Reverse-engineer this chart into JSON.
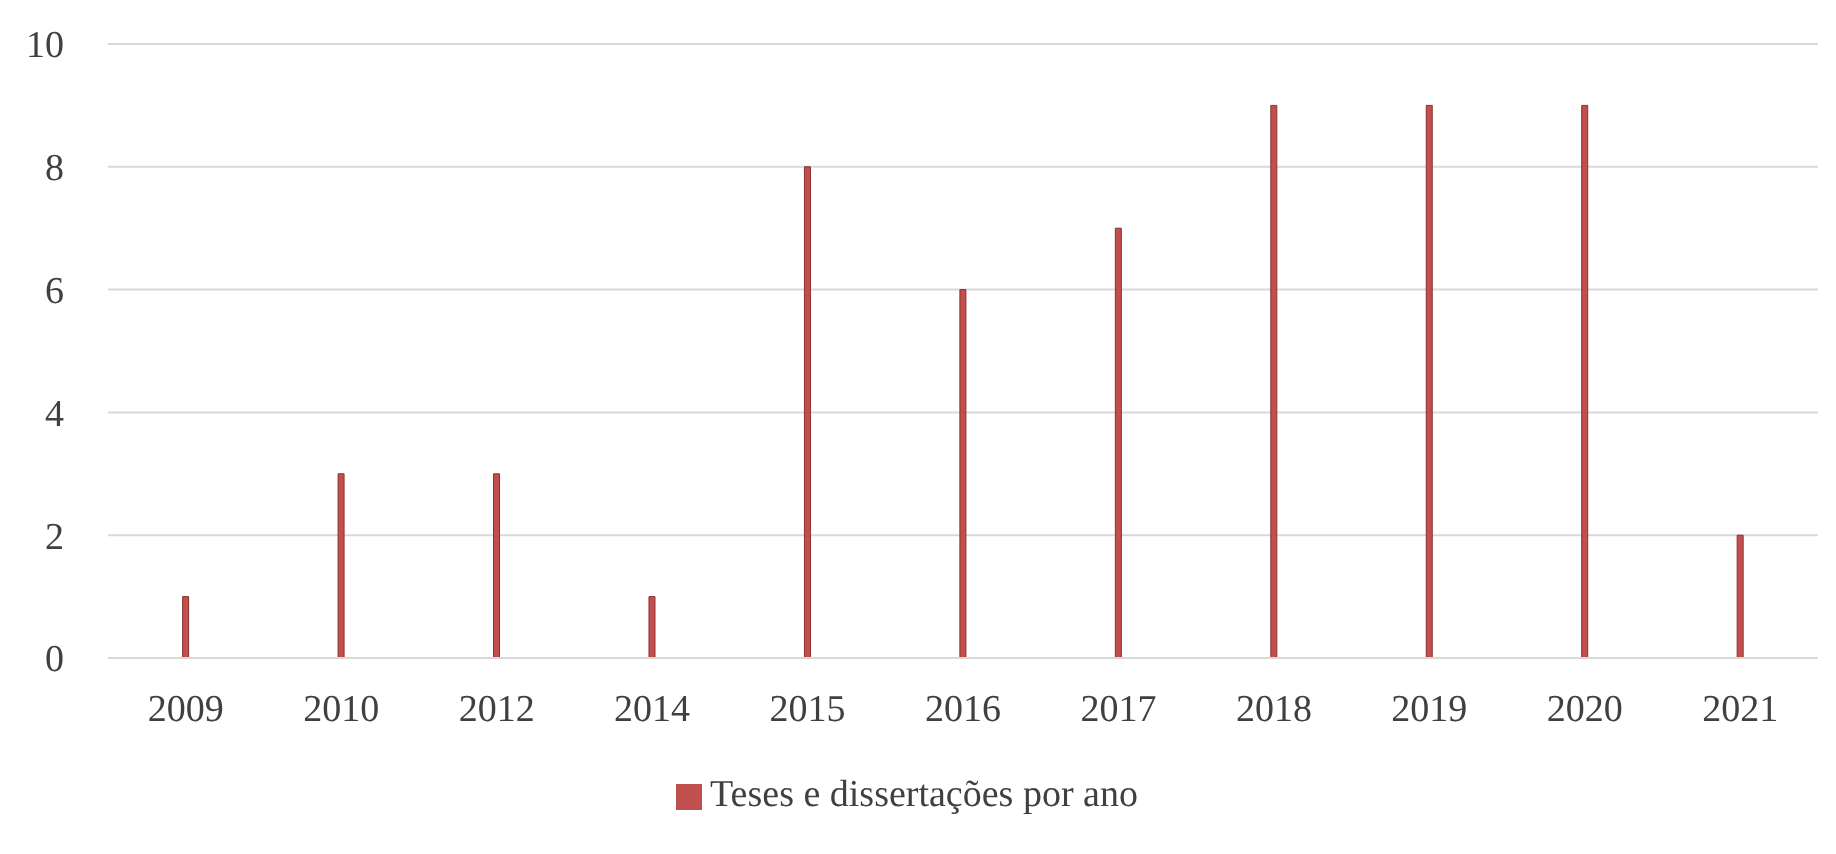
{
  "chart_data": {
    "type": "bar",
    "categories": [
      "2009",
      "2010",
      "2012",
      "2014",
      "2015",
      "2016",
      "2017",
      "2018",
      "2019",
      "2020",
      "2021"
    ],
    "series": [
      {
        "name": "Teses e dissertações por ano",
        "color": "#c0504d",
        "values": [
          1,
          3,
          3,
          1,
          8,
          6,
          7,
          9,
          9,
          9,
          2
        ]
      }
    ],
    "ylim": [
      0,
      10
    ],
    "yticks": [
      0,
      2,
      4,
      6,
      8,
      10
    ],
    "grid": "y",
    "legend": "bottom"
  }
}
